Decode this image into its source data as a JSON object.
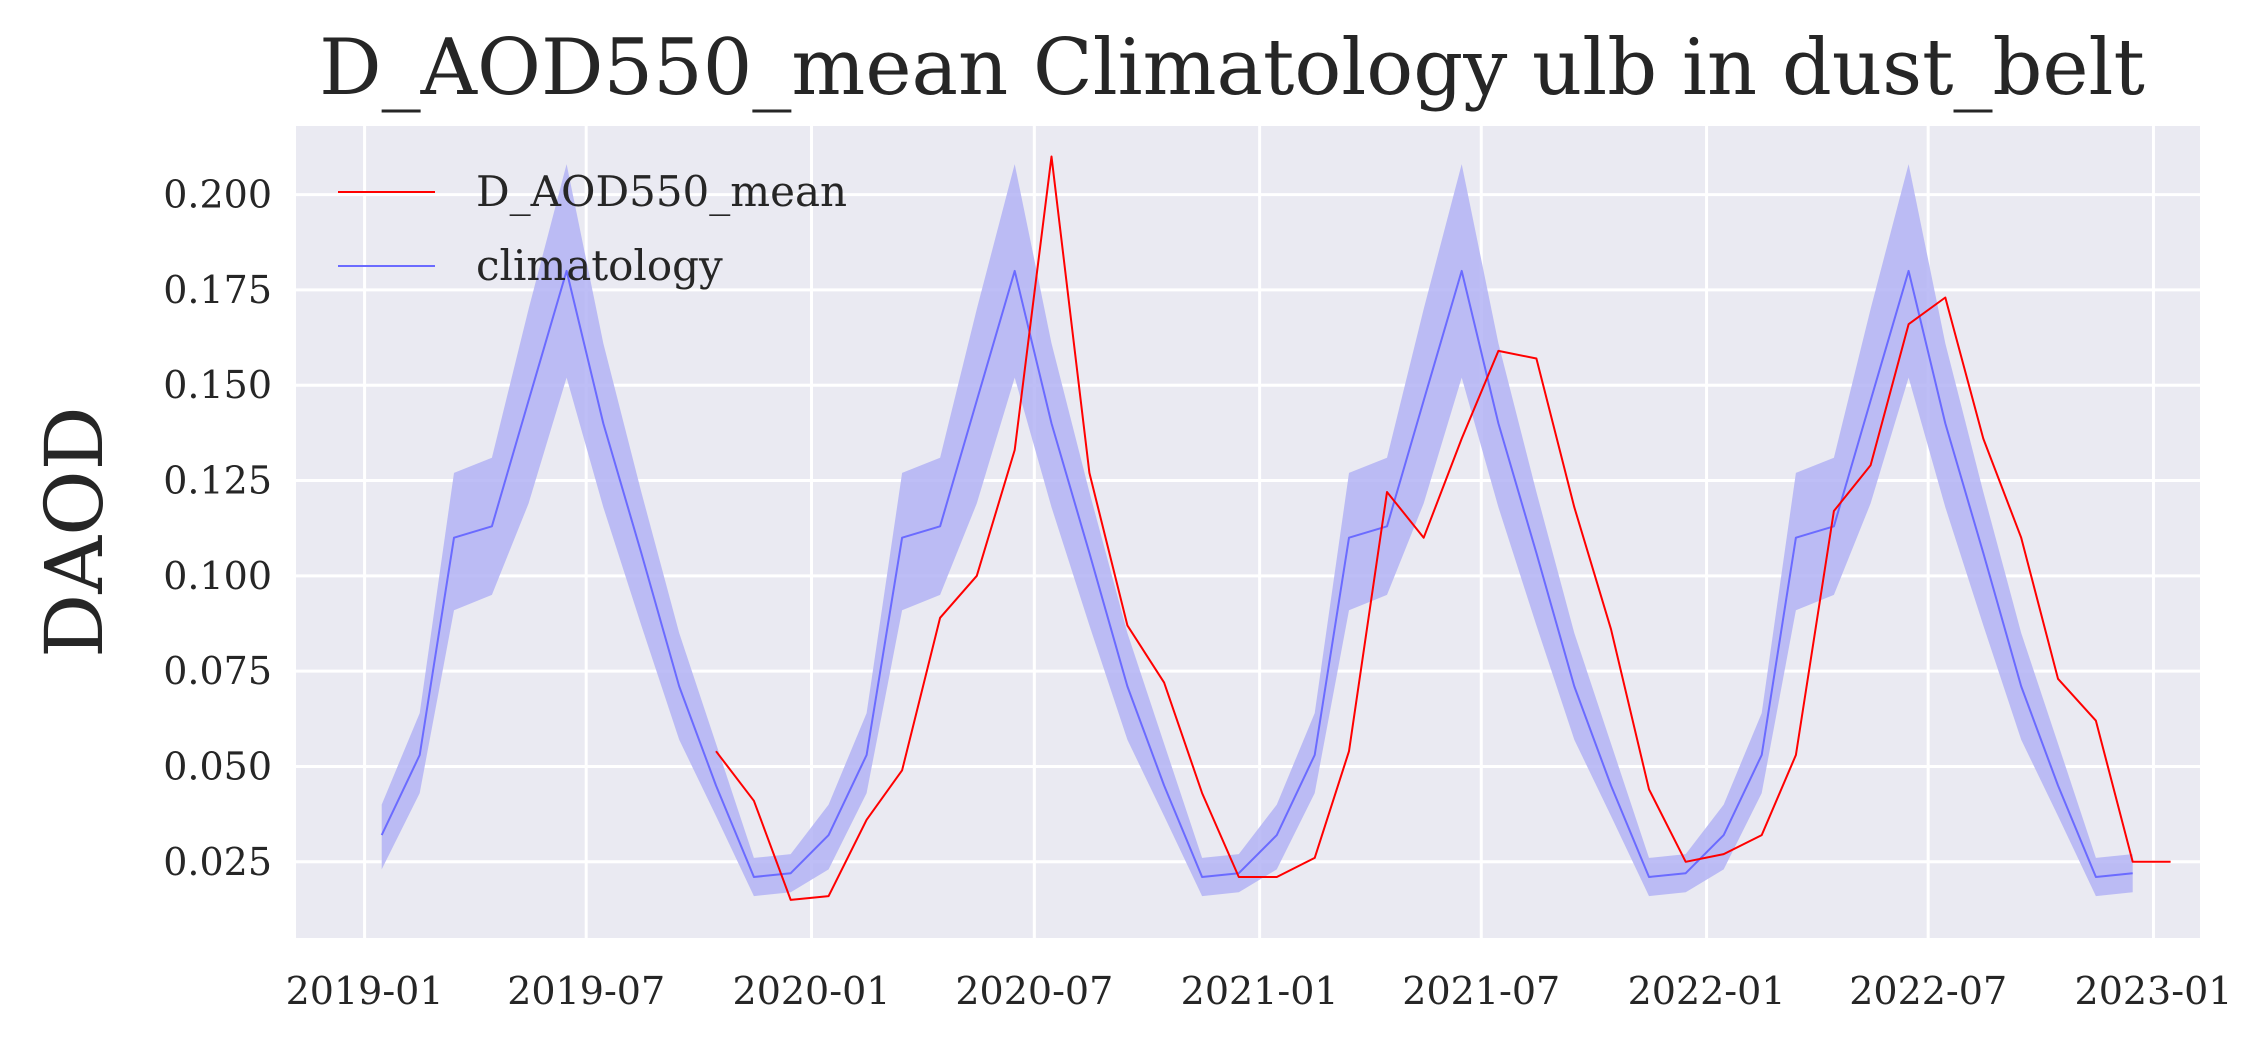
{
  "chart_data": {
    "type": "line",
    "title": "D_AOD550_mean Climatology ulb in dust_belt",
    "xlabel": "",
    "ylabel": "DAOD",
    "x_ticks": [
      "2019-01",
      "2019-07",
      "2020-01",
      "2020-07",
      "2021-01",
      "2021-07",
      "2022-01",
      "2022-07",
      "2023-01"
    ],
    "y_ticks": [
      "0.025",
      "0.050",
      "0.075",
      "0.100",
      "0.125",
      "0.150",
      "0.175",
      "0.200"
    ],
    "x_range": [
      "2018-11-06",
      "2023-02-08"
    ],
    "ylim": [
      0.005,
      0.218
    ],
    "grid": true,
    "legend_position": "upper-left",
    "series": [
      {
        "name": "D_AOD550_mean",
        "color": "#ff0000",
        "points": [
          [
            "2019-10-15",
            0.054
          ],
          [
            "2019-11-15",
            0.041
          ],
          [
            "2019-12-15",
            0.015
          ],
          [
            "2020-01-15",
            0.016
          ],
          [
            "2020-02-15",
            0.036
          ],
          [
            "2020-03-15",
            0.049
          ],
          [
            "2020-04-15",
            0.089
          ],
          [
            "2020-05-15",
            0.1
          ],
          [
            "2020-06-15",
            0.133
          ],
          [
            "2020-07-15",
            0.21
          ],
          [
            "2020-08-15",
            0.127
          ],
          [
            "2020-09-15",
            0.087
          ],
          [
            "2020-10-15",
            0.072
          ],
          [
            "2020-11-15",
            0.043
          ],
          [
            "2020-12-15",
            0.021
          ],
          [
            "2021-01-15",
            0.021
          ],
          [
            "2021-02-15",
            0.026
          ],
          [
            "2021-03-15",
            0.054
          ],
          [
            "2021-04-15",
            0.122
          ],
          [
            "2021-05-15",
            0.11
          ],
          [
            "2021-06-15",
            0.136
          ],
          [
            "2021-07-15",
            0.159
          ],
          [
            "2021-08-15",
            0.157
          ],
          [
            "2021-09-15",
            0.118
          ],
          [
            "2021-10-15",
            0.086
          ],
          [
            "2021-11-15",
            0.044
          ],
          [
            "2021-12-15",
            0.025
          ],
          [
            "2022-01-15",
            0.027
          ],
          [
            "2022-02-15",
            0.032
          ],
          [
            "2022-03-15",
            0.053
          ],
          [
            "2022-04-15",
            0.117
          ],
          [
            "2022-05-15",
            0.129
          ],
          [
            "2022-06-15",
            0.166
          ],
          [
            "2022-07-15",
            0.173
          ],
          [
            "2022-08-15",
            0.136
          ],
          [
            "2022-09-15",
            0.11
          ],
          [
            "2022-10-15",
            0.073
          ],
          [
            "2022-11-15",
            0.062
          ],
          [
            "2022-12-15",
            0.025
          ],
          [
            "2023-01-15",
            0.025
          ]
        ]
      },
      {
        "name": "climatology",
        "color": "#6b6bff",
        "band_color": "#b3b3f5",
        "points": [
          [
            "2019-01-15",
            0.032
          ],
          [
            "2019-02-15",
            0.053
          ],
          [
            "2019-03-15",
            0.11
          ],
          [
            "2019-04-15",
            0.113
          ],
          [
            "2019-05-15",
            0.146
          ],
          [
            "2019-06-15",
            0.18
          ],
          [
            "2019-07-15",
            0.14
          ],
          [
            "2019-08-15",
            0.106
          ],
          [
            "2019-09-15",
            0.071
          ],
          [
            "2019-10-15",
            0.045
          ],
          [
            "2019-11-15",
            0.021
          ],
          [
            "2019-12-15",
            0.022
          ],
          [
            "2020-01-15",
            0.032
          ],
          [
            "2020-02-15",
            0.053
          ],
          [
            "2020-03-15",
            0.11
          ],
          [
            "2020-04-15",
            0.113
          ],
          [
            "2020-05-15",
            0.146
          ],
          [
            "2020-06-15",
            0.18
          ],
          [
            "2020-07-15",
            0.14
          ],
          [
            "2020-08-15",
            0.106
          ],
          [
            "2020-09-15",
            0.071
          ],
          [
            "2020-10-15",
            0.045
          ],
          [
            "2020-11-15",
            0.021
          ],
          [
            "2020-12-15",
            0.022
          ],
          [
            "2021-01-15",
            0.032
          ],
          [
            "2021-02-15",
            0.053
          ],
          [
            "2021-03-15",
            0.11
          ],
          [
            "2021-04-15",
            0.113
          ],
          [
            "2021-05-15",
            0.146
          ],
          [
            "2021-06-15",
            0.18
          ],
          [
            "2021-07-15",
            0.14
          ],
          [
            "2021-08-15",
            0.106
          ],
          [
            "2021-09-15",
            0.071
          ],
          [
            "2021-10-15",
            0.045
          ],
          [
            "2021-11-15",
            0.021
          ],
          [
            "2021-12-15",
            0.022
          ],
          [
            "2022-01-15",
            0.032
          ],
          [
            "2022-02-15",
            0.053
          ],
          [
            "2022-03-15",
            0.11
          ],
          [
            "2022-04-15",
            0.113
          ],
          [
            "2022-05-15",
            0.146
          ],
          [
            "2022-06-15",
            0.18
          ],
          [
            "2022-07-15",
            0.14
          ],
          [
            "2022-08-15",
            0.106
          ],
          [
            "2022-09-15",
            0.071
          ],
          [
            "2022-10-15",
            0.045
          ],
          [
            "2022-11-15",
            0.021
          ],
          [
            "2022-12-15",
            0.022
          ]
        ],
        "band_low": [
          0.023,
          0.043,
          0.091,
          0.095,
          0.119,
          0.152,
          0.118,
          0.087,
          0.057,
          0.037,
          0.016,
          0.017,
          0.023,
          0.043,
          0.091,
          0.095,
          0.119,
          0.152,
          0.118,
          0.087,
          0.057,
          0.037,
          0.016,
          0.017,
          0.023,
          0.043,
          0.091,
          0.095,
          0.119,
          0.152,
          0.118,
          0.087,
          0.057,
          0.037,
          0.016,
          0.017,
          0.023,
          0.043,
          0.091,
          0.095,
          0.119,
          0.152,
          0.118,
          0.087,
          0.057,
          0.037,
          0.016,
          0.017
        ],
        "band_high": [
          0.04,
          0.064,
          0.127,
          0.131,
          0.17,
          0.208,
          0.161,
          0.122,
          0.085,
          0.056,
          0.026,
          0.027,
          0.04,
          0.064,
          0.127,
          0.131,
          0.17,
          0.208,
          0.161,
          0.122,
          0.085,
          0.056,
          0.026,
          0.027,
          0.04,
          0.064,
          0.127,
          0.131,
          0.17,
          0.208,
          0.161,
          0.122,
          0.085,
          0.056,
          0.026,
          0.027,
          0.04,
          0.064,
          0.127,
          0.131,
          0.17,
          0.208,
          0.161,
          0.122,
          0.085,
          0.056,
          0.026,
          0.027
        ]
      }
    ]
  }
}
